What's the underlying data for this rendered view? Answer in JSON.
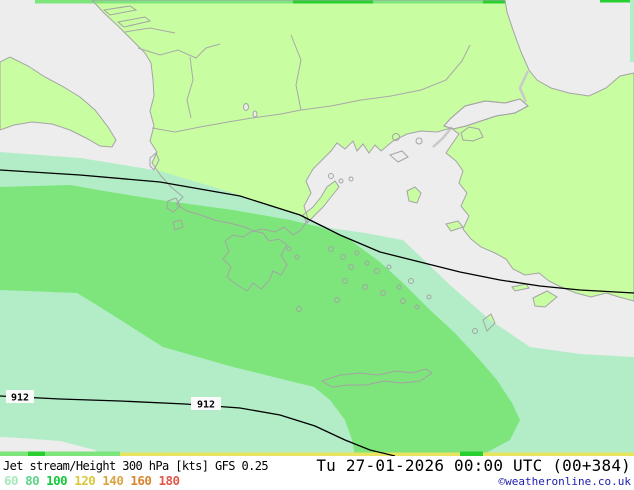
{
  "caption": {
    "title": "Jet stream/Height 300 hPa [kts] GFS 0.25",
    "datetime": "Tu 27-01-2026 00:00 UTC (00+384)",
    "copyright": "©weatheronline.co.uk",
    "legend": [
      {
        "value": "60",
        "color": "#a6e9bd"
      },
      {
        "value": "80",
        "color": "#5ed488"
      },
      {
        "value": "100",
        "color": "#15c93c"
      },
      {
        "value": "120",
        "color": "#d8c93c"
      },
      {
        "value": "140",
        "color": "#dba443"
      },
      {
        "value": "160",
        "color": "#d8862f"
      },
      {
        "value": "180",
        "color": "#e0574b"
      }
    ]
  },
  "map": {
    "contour_labels": [
      "912",
      "912"
    ],
    "palette": {
      "sea": "#ededed",
      "land": "#c9fda1",
      "coastline": "#a4a4a4",
      "jet_60_80": "#b2edc7",
      "jet_80_100": "#7ee57c",
      "jet_100_plus": "#28cf30",
      "jet_120_strip": "#e9e460",
      "height_contour": "#000000",
      "copyright_blue": "#1c1cb0"
    }
  }
}
